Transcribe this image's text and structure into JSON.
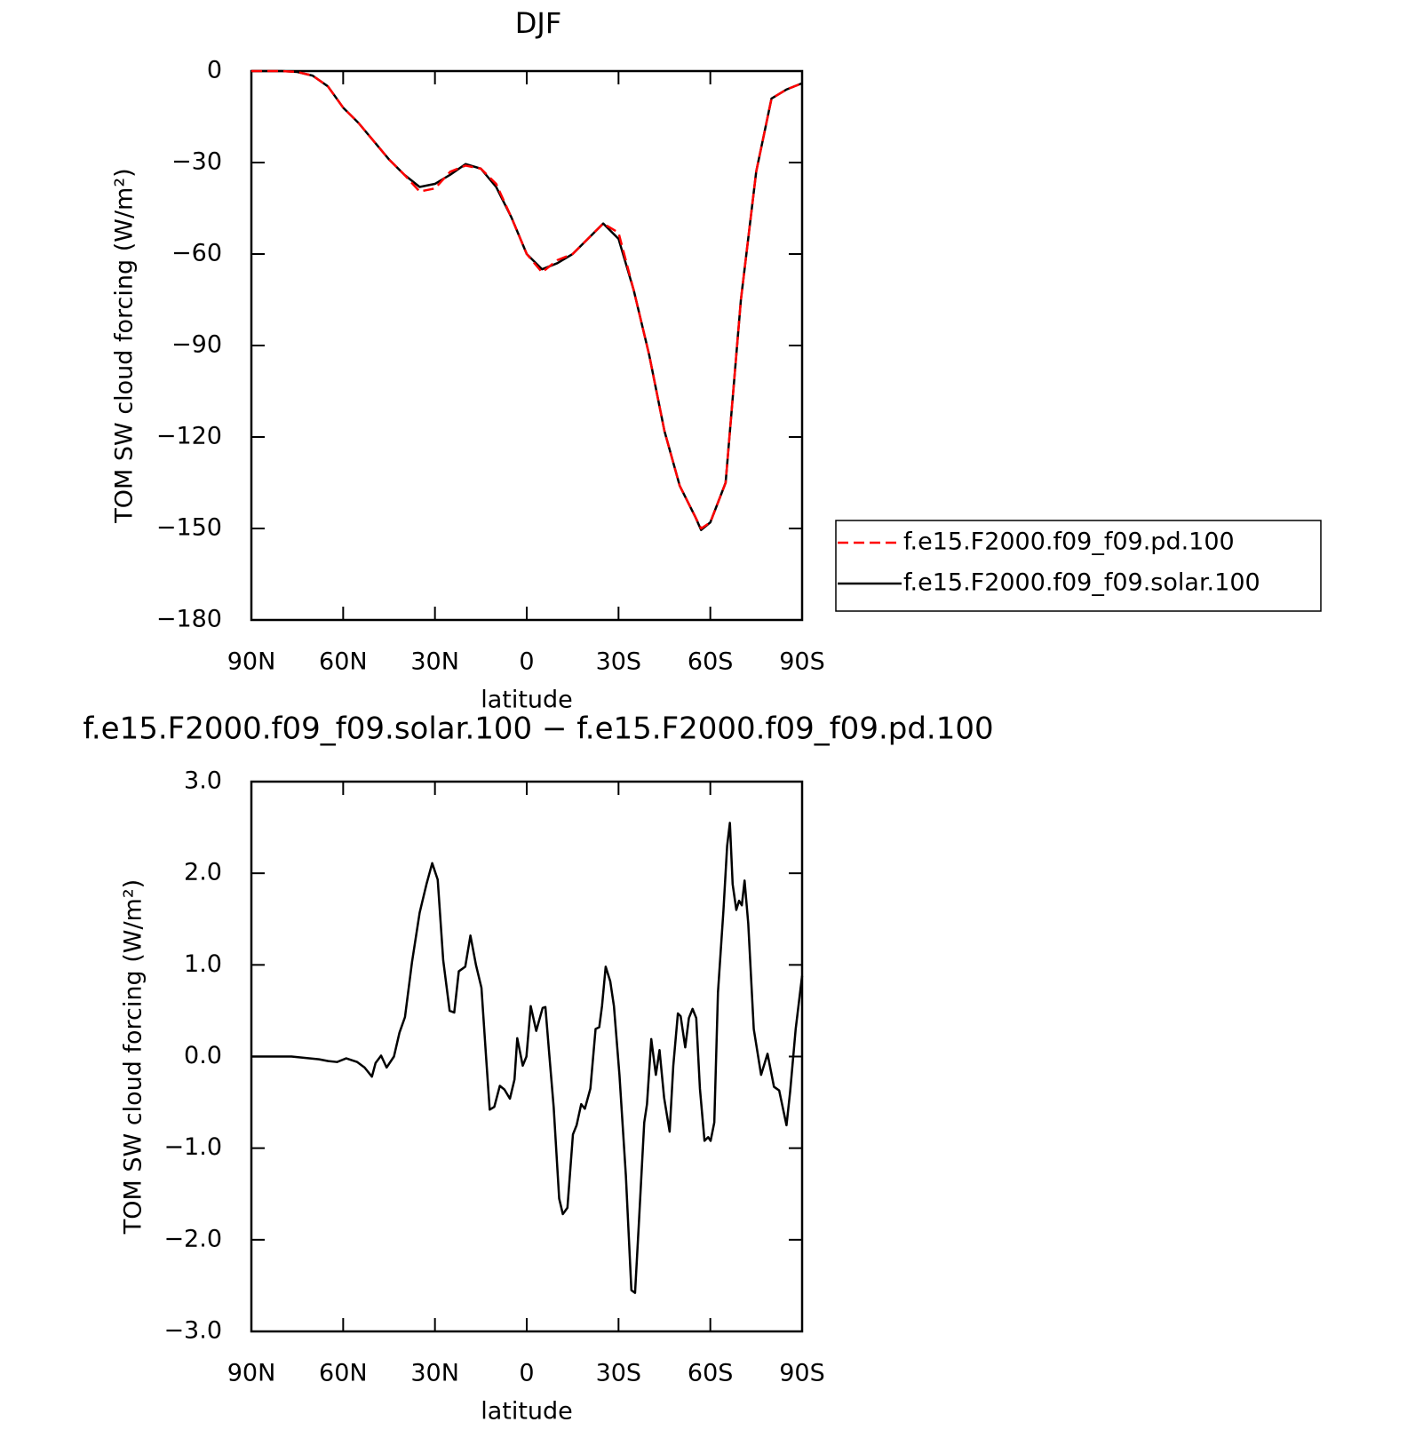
{
  "chart_data": [
    {
      "type": "line",
      "title": "DJF",
      "xlabel": "latitude",
      "ylabel": "TOM SW cloud forcing (W/m²)",
      "x": [
        90,
        85,
        80,
        75,
        70,
        65,
        60,
        55,
        50,
        45,
        40,
        35,
        30,
        25,
        20,
        15,
        10,
        5,
        0,
        -5,
        -10,
        -15,
        -20,
        -25,
        -30,
        -35,
        -40,
        -45,
        -50,
        -55,
        -57,
        -60,
        -65,
        -70,
        -75,
        -80,
        -85,
        -90
      ],
      "series": [
        {
          "name": "f.e15.F2000.f09_f09.pd.100",
          "color": "#ff0000",
          "dashed": true,
          "values": [
            0,
            0,
            0,
            -0.3,
            -1.5,
            -5,
            -12,
            -17,
            -23,
            -29,
            -34,
            -39.5,
            -38.5,
            -33,
            -31,
            -32,
            -37,
            -48,
            -60,
            -66,
            -62,
            -60,
            -55,
            -50,
            -53,
            -72,
            -93,
            -118,
            -136,
            -146,
            -150,
            -148,
            -135,
            -75,
            -33,
            -9,
            -6,
            -4
          ]
        },
        {
          "name": "f.e15.F2000.f09_f09.solar.100",
          "color": "#000000",
          "dashed": false,
          "values": [
            0,
            0,
            0,
            -0.3,
            -1.5,
            -5,
            -12,
            -17,
            -23,
            -29,
            -34,
            -38,
            -37,
            -34,
            -30.5,
            -32,
            -38,
            -48,
            -60,
            -65,
            -63,
            -60,
            -55,
            -50,
            -55,
            -72,
            -93,
            -118,
            -136,
            -146,
            -150.5,
            -148,
            -135,
            -75,
            -33,
            -9,
            -6,
            -4
          ]
        }
      ],
      "xlim": [
        90,
        -90
      ],
      "xticks": [
        {
          "value": 90,
          "label": "90N"
        },
        {
          "value": 60,
          "label": "60N"
        },
        {
          "value": 30,
          "label": "30N"
        },
        0,
        {
          "value": -30,
          "label": "30S"
        },
        {
          "value": -60,
          "label": "60S"
        },
        {
          "value": -90,
          "label": "90S"
        }
      ],
      "ylim": [
        -180,
        0
      ],
      "yticks": [
        0,
        {
          "value": -30,
          "label": "−30"
        },
        {
          "value": -60,
          "label": "−60"
        },
        {
          "value": -90,
          "label": "−90"
        },
        {
          "value": -120,
          "label": "−120"
        },
        {
          "value": -150,
          "label": "−150"
        },
        {
          "value": -180,
          "label": "−180"
        }
      ],
      "legend": "right"
    },
    {
      "type": "line",
      "title": "f.e15.F2000.f09_f09.solar.100 − f.e15.F2000.f09_f09.pd.100",
      "xlabel": "latitude",
      "ylabel": "TOM SW cloud forcing (W/m²)",
      "x": [
        90,
        76.9,
        67.9,
        64.9,
        62,
        59,
        55.4,
        53,
        50.6,
        49.4,
        47.6,
        45.8,
        43.4,
        41.6,
        39.8,
        37.5,
        35,
        32.7,
        30.9,
        29.1,
        27.3,
        25.2,
        23.7,
        22.2,
        20.1,
        18.4,
        16.6,
        14.8,
        13.3,
        12.1,
        10.6,
        8.8,
        7.3,
        5.5,
        4,
        3.1,
        1.3,
        0.1,
        -1.3,
        -3.1,
        -5.2,
        -6.1,
        -7.3,
        -8.8,
        -10.6,
        -11.8,
        -13.3,
        -15.1,
        -16.3,
        -17.8,
        -19,
        -20.8,
        -22.5,
        -23.7,
        -24.6,
        -25.8,
        -27.3,
        -28.5,
        -30.3,
        -32.4,
        -34.2,
        -35.4,
        -36.6,
        -38.4,
        -39.3,
        -40.7,
        -42.2,
        -43.4,
        -44.9,
        -46.7,
        -47.9,
        -49.4,
        -50.3,
        -51.8,
        -53,
        -54.2,
        -55.4,
        -56.6,
        -58.1,
        -59.3,
        -60.1,
        -61.3,
        -62.5,
        -64.3,
        -65.5,
        -66.4,
        -67.3,
        -68.5,
        -69.4,
        -70.3,
        -71.2,
        -72.4,
        -74.2,
        -76.6,
        -78.7,
        -80.8,
        -82.5,
        -84.9,
        -86.1,
        -87.9,
        -90
      ],
      "series": [
        {
          "name": "f.e15.F2000.f09_f09.solar.100 − f.e15.F2000.f09_f09.pd.100",
          "color": "#000000",
          "dashed": false,
          "values": [
            0,
            0,
            -0.03,
            -0.05,
            -0.06,
            -0.02,
            -0.06,
            -0.12,
            -0.22,
            -0.07,
            0.01,
            -0.12,
            0,
            0.26,
            0.43,
            1.03,
            1.57,
            1.89,
            2.11,
            1.93,
            1.05,
            0.5,
            0.48,
            0.93,
            0.98,
            1.32,
            1.0,
            0.75,
            0.0,
            -0.58,
            -0.55,
            -0.32,
            -0.36,
            -0.46,
            -0.25,
            0.2,
            -0.1,
            0,
            0.55,
            0.28,
            0.53,
            0.54,
            0.05,
            -0.55,
            -1.55,
            -1.72,
            -1.65,
            -0.85,
            -0.75,
            -0.52,
            -0.57,
            -0.35,
            0.3,
            0.32,
            0.55,
            0.98,
            0.82,
            0.55,
            -0.2,
            -1.3,
            -2.55,
            -2.58,
            -1.85,
            -0.72,
            -0.52,
            0.19,
            -0.2,
            0.07,
            -0.45,
            -0.82,
            -0.1,
            0.47,
            0.44,
            0.1,
            0.42,
            0.52,
            0.42,
            -0.35,
            -0.92,
            -0.88,
            -0.92,
            -0.72,
            0.7,
            1.6,
            2.3,
            2.55,
            1.88,
            1.6,
            1.7,
            1.65,
            1.92,
            1.45,
            0.3,
            -0.2,
            0.03,
            -0.33,
            -0.37,
            -0.75,
            -0.38,
            0.3,
            0.88
          ]
        }
      ],
      "xlim": [
        90,
        -90
      ],
      "xticks": [
        {
          "value": 90,
          "label": "90N"
        },
        {
          "value": 60,
          "label": "60N"
        },
        {
          "value": 30,
          "label": "30N"
        },
        0,
        {
          "value": -30,
          "label": "30S"
        },
        {
          "value": -60,
          "label": "60S"
        },
        {
          "value": -90,
          "label": "90S"
        }
      ],
      "ylim": [
        -3,
        3
      ],
      "yticks": [
        {
          "value": 3,
          "label": "3.0"
        },
        {
          "value": 2,
          "label": "2.0"
        },
        {
          "value": 1,
          "label": "1.0"
        },
        {
          "value": 0,
          "label": "0.0"
        },
        {
          "value": -1,
          "label": "−1.0"
        },
        {
          "value": -2,
          "label": "−2.0"
        },
        {
          "value": -3,
          "label": "−3.0"
        }
      ]
    }
  ]
}
